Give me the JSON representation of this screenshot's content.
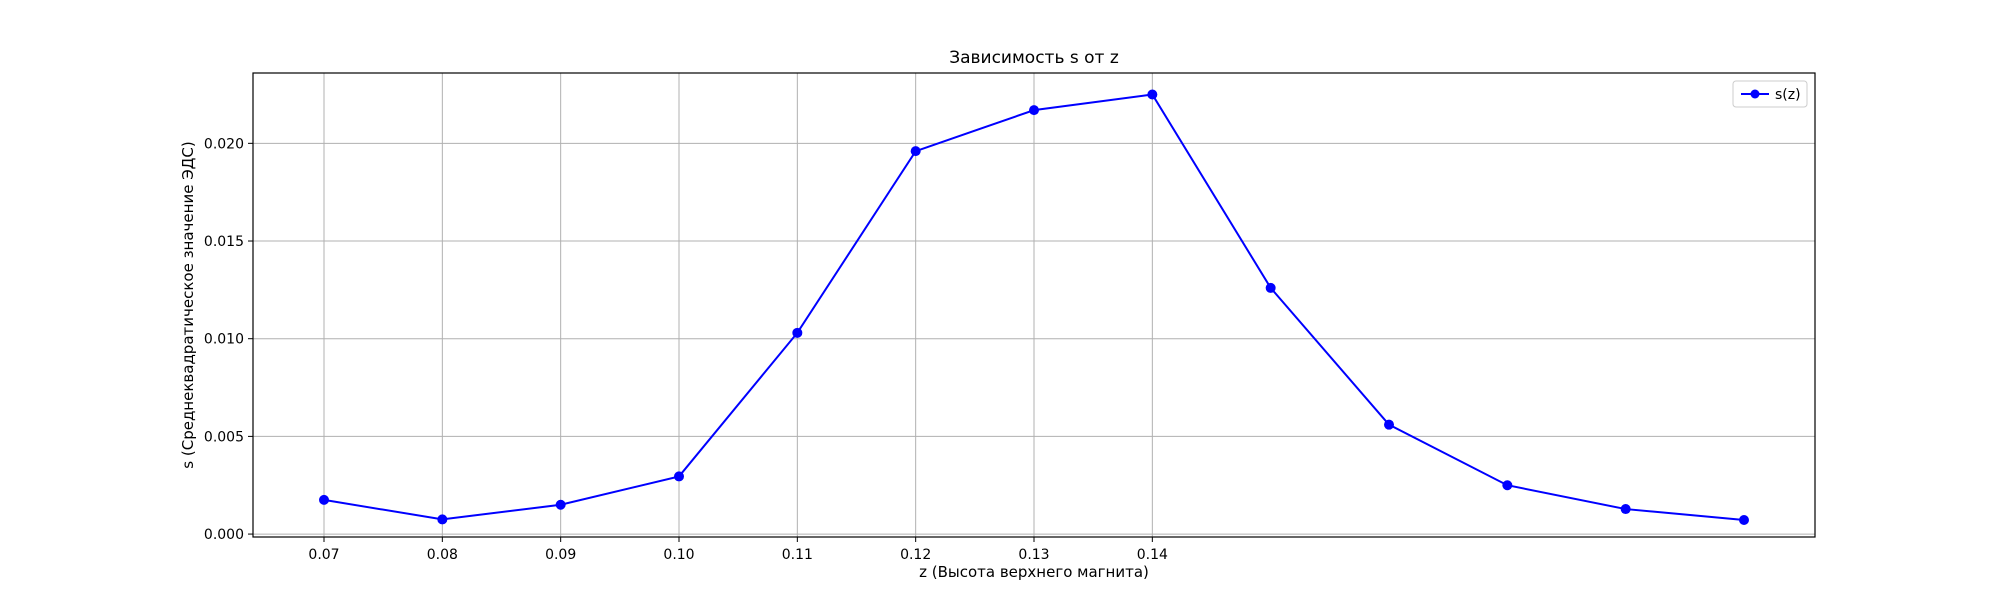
{
  "chart_data": {
    "type": "line",
    "title": "Зависимость s от z",
    "xlabel": "z (Высота верхнего магнита)",
    "ylabel": "s (Среднеквадратическое значение ЭДС)",
    "x": [
      0.07,
      0.08,
      0.09,
      0.1,
      0.11,
      0.12,
      0.13,
      0.14,
      0.15,
      0.16,
      0.17,
      0.18,
      0.19
    ],
    "x_ticks": [
      "0.07",
      "0.08",
      "0.09",
      "0.10",
      "0.11",
      "0.12",
      "0.13",
      "0.14"
    ],
    "y_ticks": [
      "0.000",
      "0.005",
      "0.010",
      "0.015",
      "0.020"
    ],
    "xlim": [
      0.064,
      0.196
    ],
    "ylim": [
      -0.00015,
      0.0236
    ],
    "series": [
      {
        "name": "s(z)",
        "color": "#0000ff",
        "marker": "circle",
        "values": [
          0.00175,
          0.00075,
          0.0015,
          0.00295,
          0.0103,
          0.0196,
          0.0217,
          0.0225,
          0.0126,
          0.0056,
          0.0025,
          0.00128,
          0.00072
        ]
      }
    ],
    "grid": true,
    "legend_position": "top-right"
  }
}
